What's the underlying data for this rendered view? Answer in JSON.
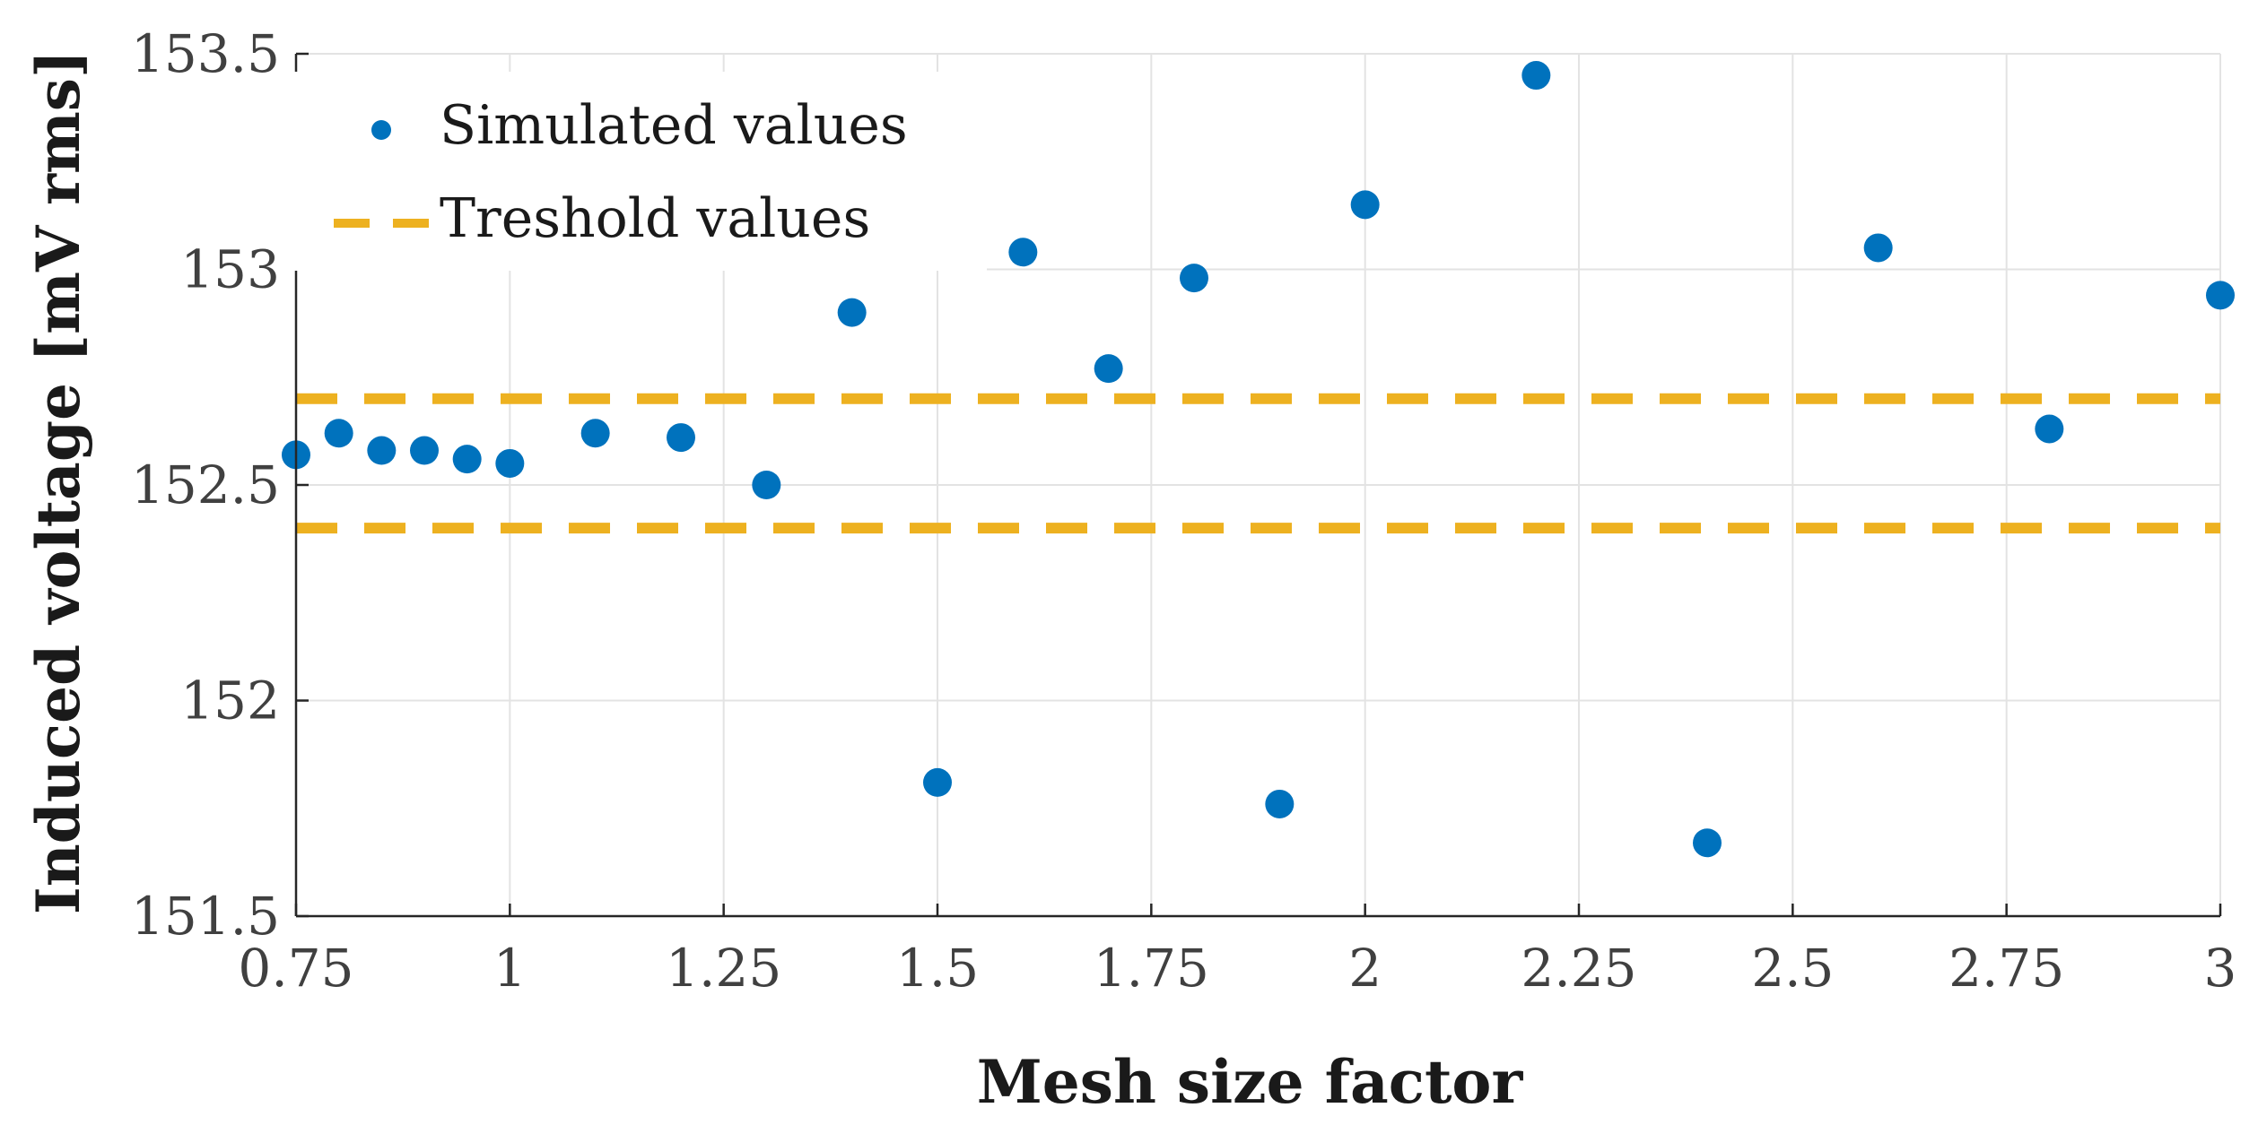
{
  "chart_data": {
    "type": "scatter",
    "title": "",
    "xlabel": "Mesh size factor",
    "ylabel": "Induced voltage [mV rms]",
    "xlim": [
      0.75,
      3
    ],
    "ylim": [
      151.5,
      153.5
    ],
    "xticks": [
      "0.75",
      "1",
      "1.25",
      "1.5",
      "1.75",
      "2",
      "2.25",
      "2.5",
      "2.75",
      "3"
    ],
    "yticks": [
      "151.5",
      "152",
      "152.5",
      "153",
      "153.5"
    ],
    "grid": true,
    "legend_position": "top-left",
    "series": [
      {
        "name": "Simulated values",
        "kind": "scatter",
        "color": "#0072BD",
        "x": [
          0.75,
          0.8,
          0.85,
          0.9,
          0.95,
          1.0,
          1.1,
          1.2,
          1.3,
          1.4,
          1.5,
          1.6,
          1.7,
          1.8,
          1.9,
          2.0,
          2.2,
          2.4,
          2.6,
          2.8,
          3.0
        ],
        "y": [
          152.57,
          152.62,
          152.58,
          152.58,
          152.56,
          152.55,
          152.62,
          152.61,
          152.5,
          152.9,
          151.81,
          153.04,
          152.77,
          152.98,
          151.76,
          153.15,
          153.45,
          151.67,
          153.05,
          152.63,
          152.94
        ]
      },
      {
        "name": "Treshold values",
        "kind": "hline",
        "color": "#EDB120",
        "y": [
          152.7,
          152.4
        ]
      }
    ]
  }
}
